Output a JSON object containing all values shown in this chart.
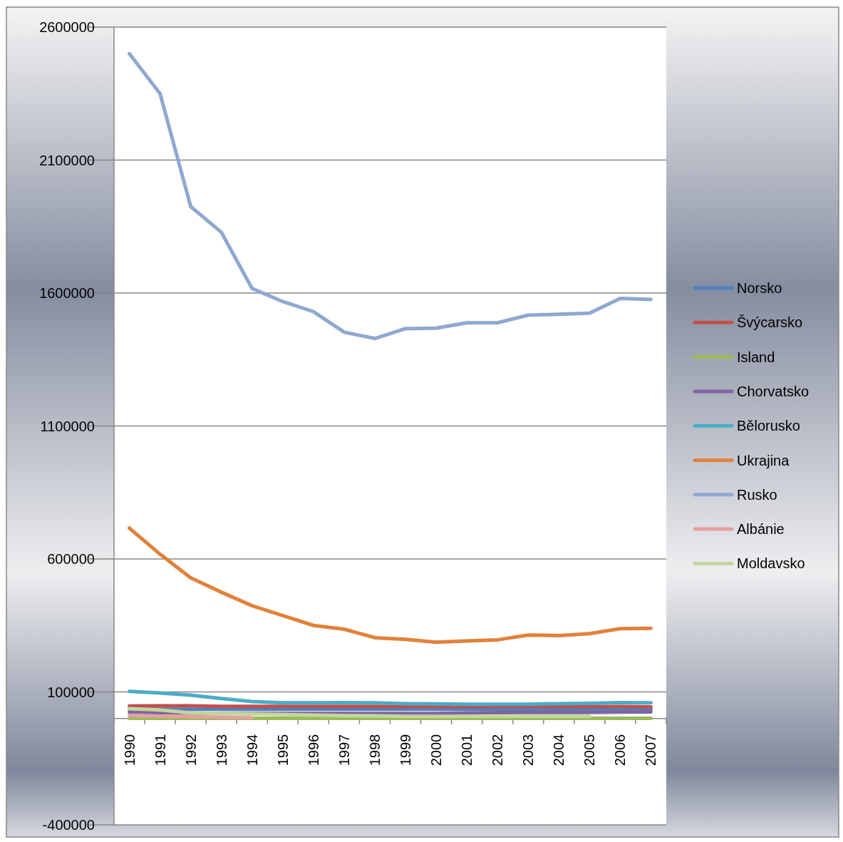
{
  "chart_data": {
    "type": "line",
    "categories": [
      "1990",
      "1991",
      "1992",
      "1993",
      "1994",
      "1995",
      "1996",
      "1997",
      "1998",
      "1999",
      "2000",
      "2001",
      "2002",
      "2003",
      "2004",
      "2005",
      "2006",
      "2007"
    ],
    "ylim": [
      -400000,
      2600000
    ],
    "yticks": [
      -400000,
      100000,
      600000,
      1100000,
      1600000,
      2100000,
      2600000
    ],
    "grid": "y",
    "legend": "right",
    "marker": "none",
    "series": [
      {
        "name": "Norsko",
        "color": "#4f81bd",
        "values": [
          36000,
          35000,
          35000,
          35000,
          35000,
          35000,
          35000,
          35000,
          35000,
          35000,
          35000,
          35000,
          35000,
          35000,
          35000,
          35000,
          35000,
          35000
        ]
      },
      {
        "name": "Švýcarsko",
        "color": "#c0504d",
        "values": [
          47000,
          48000,
          48000,
          46000,
          46000,
          46000,
          46000,
          46000,
          46000,
          45000,
          45000,
          45000,
          45000,
          45000,
          45000,
          45000,
          45000,
          44000
        ]
      },
      {
        "name": "Island",
        "color": "#9bbb59",
        "values": [
          1000,
          1000,
          1000,
          1000,
          1000,
          1000,
          1000,
          1000,
          1000,
          1000,
          1000,
          1000,
          1000,
          1000,
          1000,
          1000,
          1000,
          1000
        ]
      },
      {
        "name": "Chorvatsko",
        "color": "#8064a2",
        "values": [
          24000,
          22000,
          20000,
          19000,
          19000,
          19000,
          19000,
          19000,
          19000,
          19000,
          19000,
          21000,
          22000,
          23000,
          23000,
          23000,
          24000,
          25000
        ]
      },
      {
        "name": "Bělorusko",
        "color": "#4bacc6",
        "values": [
          102000,
          96000,
          88000,
          75000,
          64000,
          59000,
          59000,
          60000,
          59000,
          56000,
          55000,
          54000,
          54000,
          54000,
          56000,
          57000,
          60000,
          59000
        ]
      },
      {
        "name": "Ukrajina",
        "color": "#e0823a",
        "values": [
          716000,
          618000,
          529000,
          475000,
          424000,
          387000,
          350000,
          336000,
          304000,
          298000,
          287000,
          292000,
          296000,
          314000,
          312000,
          319000,
          338000,
          339000
        ]
      },
      {
        "name": "Rusko",
        "color": "#8fa8d0",
        "values": [
          2500000,
          2350000,
          1925000,
          1828000,
          1617000,
          1568000,
          1530000,
          1453000,
          1429000,
          1466000,
          1468000,
          1488000,
          1488000,
          1517000,
          1520000,
          1524000,
          1580000,
          1576000
        ]
      },
      {
        "name": "Albánie",
        "color": "#e6a0a0",
        "values": [
          11000,
          9000,
          7000,
          5000,
          3000,
          null,
          null,
          null,
          null,
          null,
          null,
          null,
          null,
          null,
          null,
          null,
          null,
          null
        ]
      },
      {
        "name": "Moldavsko",
        "color": "#c3d69b",
        "values": [
          37000,
          32000,
          21000,
          19000,
          17000,
          15000,
          13000,
          11000,
          10000,
          8000,
          8000,
          8000,
          8000,
          8000,
          8000,
          8000,
          null,
          null
        ]
      }
    ]
  }
}
